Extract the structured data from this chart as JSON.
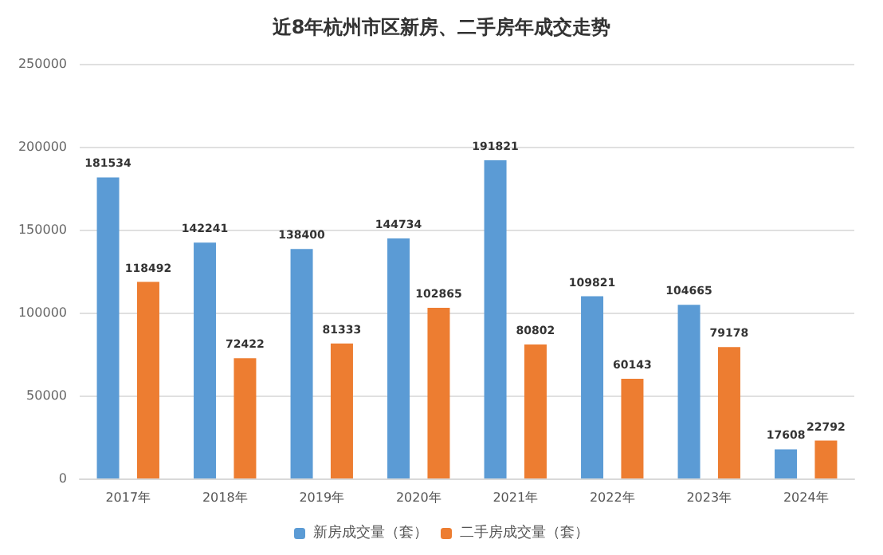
{
  "chart_data": {
    "type": "bar",
    "title": "近8年杭州市区新房、二手房年成交走势",
    "categories": [
      "2017年",
      "2018年",
      "2019年",
      "2020年",
      "2021年",
      "2022年",
      "2023年",
      "2024年"
    ],
    "series": [
      {
        "name": "新房成交量（套）",
        "color": "#5b9bd5",
        "values": [
          181534,
          142241,
          138400,
          144734,
          191821,
          109821,
          104665,
          17608
        ]
      },
      {
        "name": "二手房成交量（套）",
        "color": "#ed7d31",
        "values": [
          118492,
          72422,
          81333,
          102865,
          80802,
          60143,
          79178,
          22792
        ]
      }
    ],
    "ylim": [
      0,
      250000
    ],
    "yticks": [
      0,
      50000,
      100000,
      150000,
      200000,
      250000
    ],
    "grid": "y",
    "legend": "bottom",
    "data_labels": true
  }
}
